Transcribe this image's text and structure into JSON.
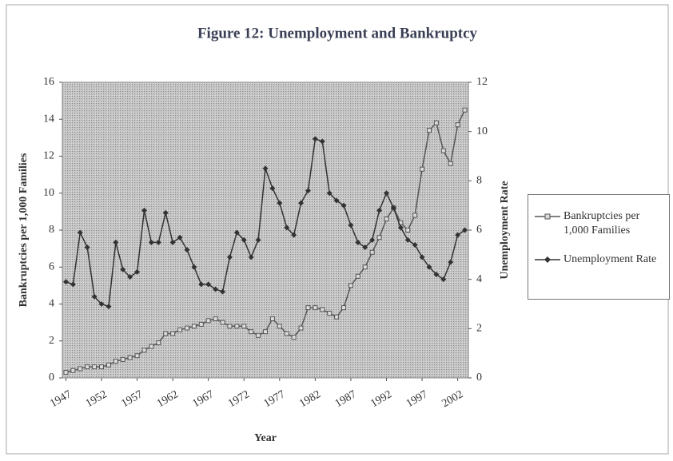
{
  "chart_data": {
    "type": "line",
    "title": "Figure 12: Unemployment and Bankruptcy",
    "xlabel": "Year",
    "ylabel": "Bankruptcies per 1,000 Families",
    "y2label": "Unemployment Rate",
    "x": [
      1947,
      1948,
      1949,
      1950,
      1951,
      1952,
      1953,
      1954,
      1955,
      1956,
      1957,
      1958,
      1959,
      1960,
      1961,
      1962,
      1963,
      1964,
      1965,
      1966,
      1967,
      1968,
      1969,
      1970,
      1971,
      1972,
      1973,
      1974,
      1975,
      1976,
      1977,
      1978,
      1979,
      1980,
      1981,
      1982,
      1983,
      1984,
      1985,
      1986,
      1987,
      1988,
      1989,
      1990,
      1991,
      1992,
      1993,
      1994,
      1995,
      1996,
      1997,
      1998,
      1999,
      2000,
      2001,
      2002,
      2003
    ],
    "series": [
      {
        "name": "Bankruptcies per 1,000 Families",
        "color": "#555555",
        "marker": "square",
        "values": [
          0.3,
          0.4,
          0.5,
          0.6,
          0.6,
          0.6,
          0.7,
          0.9,
          1.0,
          1.1,
          1.2,
          1.5,
          1.7,
          1.9,
          2.4,
          2.4,
          2.6,
          2.7,
          2.8,
          2.9,
          3.1,
          3.2,
          3.0,
          2.8,
          2.8,
          2.8,
          2.5,
          2.3,
          2.5,
          3.2,
          2.8,
          2.4,
          2.2,
          2.7,
          3.8,
          3.8,
          3.7,
          3.5,
          3.3,
          3.8,
          5.0,
          5.5,
          6.0,
          6.8,
          7.6,
          8.6,
          9.2,
          8.4,
          8.0,
          8.8,
          11.3,
          13.4,
          13.8,
          12.3,
          11.6,
          13.7,
          14.5
        ]
      },
      {
        "name": "Unemployment Rate",
        "color": "#333333",
        "marker": "diamond",
        "axis": "y2",
        "values": [
          3.9,
          3.8,
          5.9,
          5.3,
          3.3,
          3.0,
          2.9,
          5.5,
          4.4,
          4.1,
          4.3,
          6.8,
          5.5,
          5.5,
          6.7,
          5.5,
          5.7,
          5.2,
          4.5,
          3.8,
          3.8,
          3.6,
          3.5,
          4.9,
          5.9,
          5.6,
          4.9,
          5.6,
          8.5,
          7.7,
          7.1,
          6.1,
          5.8,
          7.1,
          7.6,
          9.7,
          9.6,
          7.5,
          7.2,
          7.0,
          6.2,
          5.5,
          5.3,
          5.6,
          6.8,
          7.5,
          6.9,
          6.1,
          5.6,
          5.4,
          4.9,
          4.5,
          4.2,
          4.0,
          4.7,
          5.8,
          6.0
        ]
      }
    ],
    "xlim": [
      1946.5,
      2003.5
    ],
    "xticks": [
      1947,
      1952,
      1957,
      1962,
      1967,
      1972,
      1977,
      1982,
      1987,
      1992,
      1997,
      2002
    ],
    "ylim": [
      0,
      16
    ],
    "yticks": [
      0,
      2,
      4,
      6,
      8,
      10,
      12,
      14,
      16
    ],
    "y2lim": [
      0,
      12
    ],
    "y2ticks": [
      0,
      2,
      4,
      6,
      8,
      10,
      12
    ],
    "legend": "right"
  }
}
